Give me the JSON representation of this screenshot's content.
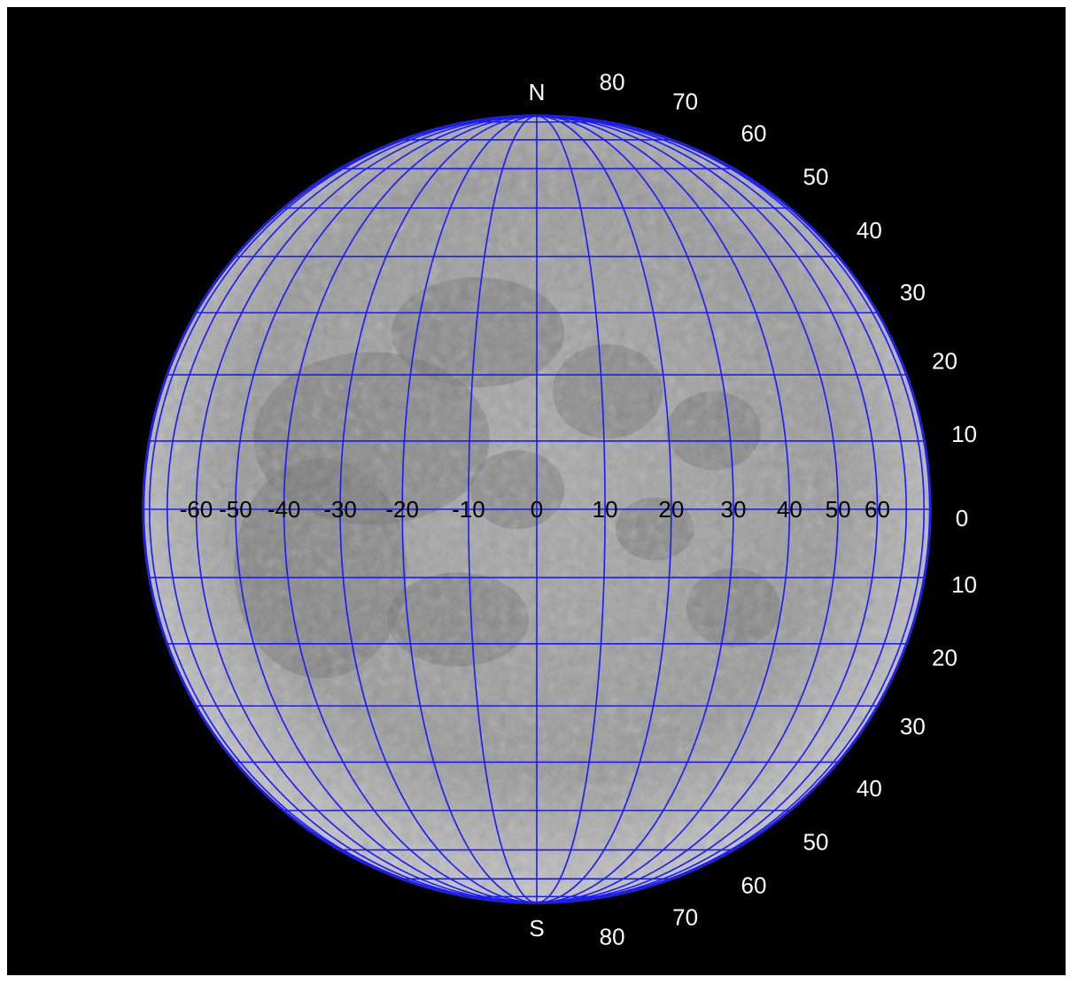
{
  "map": {
    "body": "moon-disk",
    "projection": "orthographic",
    "grid_step_degrees": 10,
    "colors": {
      "background": "#000000",
      "grid": "#1a1aff",
      "surface_light": "#b4b4b4",
      "surface_dark": "#6e6e6e",
      "pole_label": "#ffffff",
      "latitude_label": "#ffffff",
      "longitude_label": "#000000"
    },
    "poles": {
      "north": "N",
      "south": "S"
    },
    "latitude_labels_north": [
      "80",
      "70",
      "60",
      "50",
      "40",
      "30",
      "20",
      "10"
    ],
    "latitude_equator": "0",
    "latitude_labels_south": [
      "10",
      "20",
      "30",
      "40",
      "50",
      "60",
      "70",
      "80"
    ],
    "longitude_labels": [
      "-60",
      "-50",
      "-40",
      "-30",
      "-20",
      "-10",
      "0",
      "10",
      "20",
      "30",
      "40",
      "50",
      "60"
    ]
  }
}
